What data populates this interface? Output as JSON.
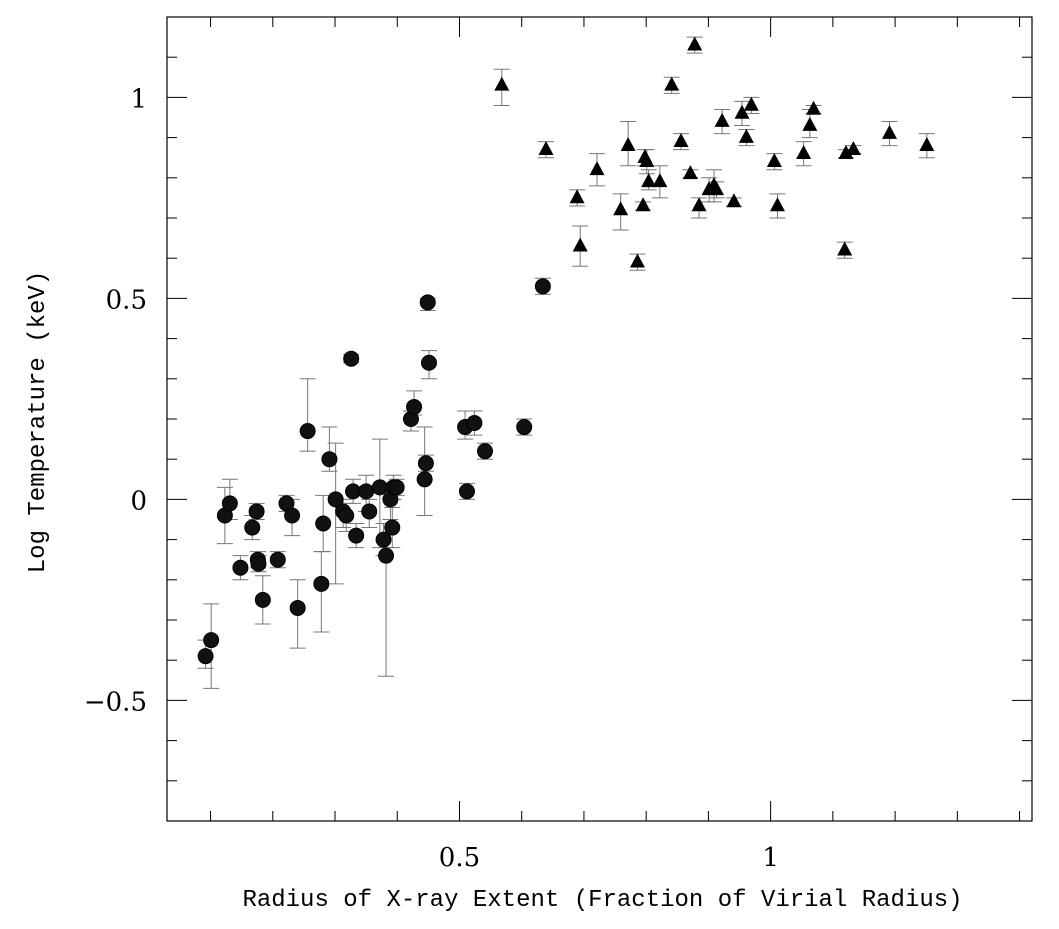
{
  "chart_data": {
    "type": "scatter",
    "title": "",
    "xlabel": "Radius of X-ray Extent (Fraction of Virial Radius)",
    "ylabel": "Log Temperature (keV)",
    "xlim": [
      0.03,
      1.42
    ],
    "ylim": [
      -0.8,
      1.2
    ],
    "x_ticks": [
      {
        "value": 0.5,
        "label": "0.5"
      },
      {
        "value": 1,
        "label": "1"
      }
    ],
    "y_ticks": [
      {
        "value": -0.5,
        "label": "−0.5"
      },
      {
        "value": 0,
        "label": "0"
      },
      {
        "value": 0.5,
        "label": "0.5"
      },
      {
        "value": 1,
        "label": "1"
      }
    ],
    "x_minor_step": 0.1,
    "y_minor_step": 0.1,
    "grid": false,
    "series": [
      {
        "marker": "circle",
        "color": "#111111",
        "points": [
          {
            "x": 0.092,
            "y": -0.39,
            "el": -0.03,
            "eh": 0.04
          },
          {
            "x": 0.101,
            "y": -0.35,
            "el": -0.12,
            "eh": 0.09
          },
          {
            "x": 0.123,
            "y": -0.04,
            "el": -0.07,
            "eh": 0.07
          },
          {
            "x": 0.131,
            "y": -0.01,
            "el": -0.04,
            "eh": 0.06
          },
          {
            "x": 0.148,
            "y": -0.17,
            "el": -0.03,
            "eh": 0.03
          },
          {
            "x": 0.167,
            "y": -0.07,
            "el": -0.03,
            "eh": 0.03
          },
          {
            "x": 0.174,
            "y": -0.03,
            "el": -0.02,
            "eh": 0.02
          },
          {
            "x": 0.176,
            "y": -0.15,
            "el": -0.02,
            "eh": 0.02
          },
          {
            "x": 0.177,
            "y": -0.16,
            "el": -0.02,
            "eh": 0.02
          },
          {
            "x": 0.184,
            "y": -0.25,
            "el": -0.06,
            "eh": 0.06
          },
          {
            "x": 0.208,
            "y": -0.15,
            "el": -0.02,
            "eh": 0.02
          },
          {
            "x": 0.222,
            "y": -0.01,
            "el": -0.02,
            "eh": 0.02
          },
          {
            "x": 0.231,
            "y": -0.04,
            "el": -0.05,
            "eh": 0.04
          },
          {
            "x": 0.24,
            "y": -0.27,
            "el": -0.1,
            "eh": 0.07
          },
          {
            "x": 0.256,
            "y": 0.17,
            "el": -0.05,
            "eh": 0.13
          },
          {
            "x": 0.278,
            "y": -0.21,
            "el": -0.12,
            "eh": 0.08
          },
          {
            "x": 0.281,
            "y": -0.06,
            "el": -0.07,
            "eh": 0.07
          },
          {
            "x": 0.291,
            "y": 0.1,
            "el": -0.03,
            "eh": 0.08
          },
          {
            "x": 0.301,
            "y": 0.0,
            "el": -0.21,
            "eh": 0.14
          },
          {
            "x": 0.313,
            "y": -0.03,
            "el": -0.04,
            "eh": 0.03
          },
          {
            "x": 0.318,
            "y": -0.04,
            "el": -0.04,
            "eh": 0.03
          },
          {
            "x": 0.326,
            "y": 0.35,
            "el": -0.01,
            "eh": 0.01
          },
          {
            "x": 0.329,
            "y": 0.02,
            "el": -0.03,
            "eh": 0.03
          },
          {
            "x": 0.334,
            "y": -0.09,
            "el": -0.03,
            "eh": 0.03
          },
          {
            "x": 0.35,
            "y": 0.02,
            "el": -0.05,
            "eh": 0.04
          },
          {
            "x": 0.355,
            "y": -0.03,
            "el": -0.04,
            "eh": 0.03
          },
          {
            "x": 0.372,
            "y": 0.03,
            "el": -0.15,
            "eh": 0.12
          },
          {
            "x": 0.378,
            "y": -0.1,
            "el": -0.04,
            "eh": 0.04
          },
          {
            "x": 0.382,
            "y": -0.14,
            "el": -0.3,
            "eh": 0.02
          },
          {
            "x": 0.389,
            "y": 0.0,
            "el": -0.05,
            "eh": 0.04
          },
          {
            "x": 0.392,
            "y": -0.07,
            "el": -0.05,
            "eh": 0.05
          },
          {
            "x": 0.394,
            "y": 0.03,
            "el": -0.03,
            "eh": 0.03
          },
          {
            "x": 0.399,
            "y": 0.03,
            "el": -0.02,
            "eh": 0.02
          },
          {
            "x": 0.422,
            "y": 0.2,
            "el": -0.03,
            "eh": 0.02
          },
          {
            "x": 0.427,
            "y": 0.23,
            "el": -0.02,
            "eh": 0.04
          },
          {
            "x": 0.444,
            "y": 0.05,
            "el": -0.09,
            "eh": 0.13
          },
          {
            "x": 0.446,
            "y": 0.09,
            "el": -0.02,
            "eh": 0.02
          },
          {
            "x": 0.449,
            "y": 0.49,
            "el": -0.02,
            "eh": 0.01
          },
          {
            "x": 0.451,
            "y": 0.34,
            "el": -0.04,
            "eh": 0.03
          },
          {
            "x": 0.509,
            "y": 0.18,
            "el": -0.03,
            "eh": 0.04
          },
          {
            "x": 0.512,
            "y": 0.02,
            "el": -0.02,
            "eh": 0.02
          },
          {
            "x": 0.524,
            "y": 0.19,
            "el": -0.03,
            "eh": 0.03
          },
          {
            "x": 0.541,
            "y": 0.12,
            "el": -0.02,
            "eh": 0.02
          },
          {
            "x": 0.604,
            "y": 0.18,
            "el": -0.02,
            "eh": 0.02
          },
          {
            "x": 0.634,
            "y": 0.53,
            "el": -0.02,
            "eh": 0.02
          }
        ]
      },
      {
        "marker": "triangle",
        "color": "#000000",
        "points": [
          {
            "x": 0.568,
            "y": 1.03,
            "el": -0.05,
            "eh": 0.04
          },
          {
            "x": 0.639,
            "y": 0.87,
            "el": -0.02,
            "eh": 0.02
          },
          {
            "x": 0.689,
            "y": 0.75,
            "el": -0.02,
            "eh": 0.02
          },
          {
            "x": 0.694,
            "y": 0.63,
            "el": -0.05,
            "eh": 0.05
          },
          {
            "x": 0.721,
            "y": 0.82,
            "el": -0.04,
            "eh": 0.04
          },
          {
            "x": 0.759,
            "y": 0.72,
            "el": -0.05,
            "eh": 0.04
          },
          {
            "x": 0.771,
            "y": 0.88,
            "el": -0.05,
            "eh": 0.06
          },
          {
            "x": 0.786,
            "y": 0.59,
            "el": -0.02,
            "eh": 0.02
          },
          {
            "x": 0.795,
            "y": 0.73,
            "el": -0.01,
            "eh": 0.01
          },
          {
            "x": 0.798,
            "y": 0.85,
            "el": -0.02,
            "eh": 0.02
          },
          {
            "x": 0.801,
            "y": 0.84,
            "el": -0.03,
            "eh": 0.03
          },
          {
            "x": 0.804,
            "y": 0.79,
            "el": -0.02,
            "eh": 0.03
          },
          {
            "x": 0.822,
            "y": 0.79,
            "el": -0.04,
            "eh": 0.04
          },
          {
            "x": 0.841,
            "y": 1.03,
            "el": -0.02,
            "eh": 0.02
          },
          {
            "x": 0.856,
            "y": 0.89,
            "el": -0.02,
            "eh": 0.02
          },
          {
            "x": 0.871,
            "y": 0.81,
            "el": -0.01,
            "eh": 0.01
          },
          {
            "x": 0.878,
            "y": 1.13,
            "el": -0.02,
            "eh": 0.02
          },
          {
            "x": 0.885,
            "y": 0.73,
            "el": -0.03,
            "eh": 0.02
          },
          {
            "x": 0.901,
            "y": 0.77,
            "el": -0.03,
            "eh": 0.03
          },
          {
            "x": 0.909,
            "y": 0.78,
            "el": -0.04,
            "eh": 0.04
          },
          {
            "x": 0.913,
            "y": 0.77,
            "el": -0.02,
            "eh": 0.02
          },
          {
            "x": 0.922,
            "y": 0.94,
            "el": -0.03,
            "eh": 0.03
          },
          {
            "x": 0.941,
            "y": 0.74,
            "el": -0.01,
            "eh": 0.01
          },
          {
            "x": 0.954,
            "y": 0.96,
            "el": -0.03,
            "eh": 0.03
          },
          {
            "x": 0.961,
            "y": 0.9,
            "el": -0.02,
            "eh": 0.02
          },
          {
            "x": 0.969,
            "y": 0.98,
            "el": -0.02,
            "eh": 0.02
          },
          {
            "x": 1.006,
            "y": 0.84,
            "el": -0.02,
            "eh": 0.02
          },
          {
            "x": 1.011,
            "y": 0.73,
            "el": -0.03,
            "eh": 0.03
          },
          {
            "x": 1.053,
            "y": 0.86,
            "el": -0.03,
            "eh": 0.03
          },
          {
            "x": 1.063,
            "y": 0.93,
            "el": -0.03,
            "eh": 0.04
          },
          {
            "x": 1.069,
            "y": 0.97,
            "el": -0.01,
            "eh": 0.01
          },
          {
            "x": 1.119,
            "y": 0.62,
            "el": -0.02,
            "eh": 0.02
          },
          {
            "x": 1.121,
            "y": 0.86,
            "el": -0.01,
            "eh": 0.01
          },
          {
            "x": 1.133,
            "y": 0.87,
            "el": -0.01,
            "eh": 0.01
          },
          {
            "x": 1.191,
            "y": 0.91,
            "el": -0.03,
            "eh": 0.03
          },
          {
            "x": 1.251,
            "y": 0.88,
            "el": -0.03,
            "eh": 0.03
          }
        ]
      }
    ]
  }
}
